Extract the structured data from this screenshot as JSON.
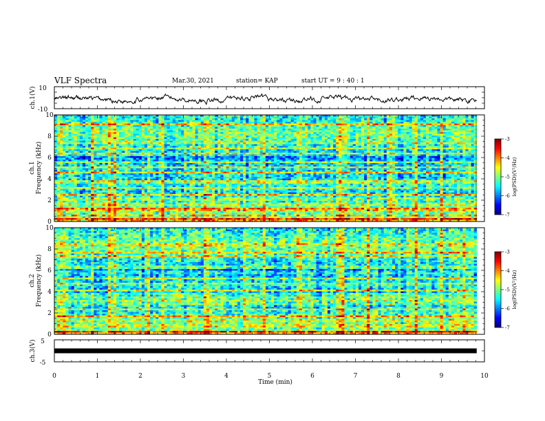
{
  "header": {
    "title": "VLF Spectra",
    "date": "Mar.30, 2021",
    "station": "station= KAP",
    "start": "start  UT =   9 : 40 : 1"
  },
  "chart_data": [
    {
      "type": "line",
      "ylabel": "ch.1(V)",
      "ylim": [
        -10,
        10
      ],
      "yticks": [
        "10",
        "-10"
      ],
      "xlim": [
        0,
        10
      ],
      "data_end": 9.82,
      "series_color": "#000000"
    },
    {
      "type": "heatmap",
      "ylabel_line1": "ch.1",
      "ylabel_line2": "Frequency  (kHz)",
      "ylim": [
        0,
        10
      ],
      "yticks": [
        "0",
        "2",
        "4",
        "6",
        "8",
        "10"
      ],
      "colorbar": {
        "label": "log(PSD)(V²/Hz)",
        "range": [
          -7,
          -3
        ],
        "ticks": [
          "-3",
          "-4",
          "-5",
          "-6",
          "-7"
        ]
      },
      "lines_khz": [
        0.3,
        0.6,
        1.0,
        1.2,
        1.6,
        2.1,
        2.5,
        3.1,
        3.7,
        3.85,
        4.6,
        5.1,
        5.6,
        6.4,
        6.9,
        7.4,
        9.1
      ],
      "bursts_min": [
        0.2,
        0.9,
        1.3,
        1.4,
        2.2,
        2.5,
        3.2,
        3.5,
        3.6,
        4.4,
        4.9,
        5.7,
        6.6,
        6.65,
        6.7,
        7.3,
        7.8,
        8.4,
        9.0,
        9.5
      ]
    },
    {
      "type": "heatmap",
      "ylabel_line1": "ch.2",
      "ylabel_line2": "Frequency  (kHz)",
      "ylim": [
        0,
        10
      ],
      "yticks": [
        "0",
        "2",
        "4",
        "6",
        "8",
        "10"
      ],
      "colorbar": {
        "label": "log(PSD)(V²/Hz)",
        "range": [
          -7,
          -3
        ],
        "ticks": [
          "-3",
          "-4",
          "-5",
          "-6",
          "-7"
        ]
      },
      "lines_khz": [
        0.3,
        0.8,
        1.3,
        1.7,
        2.3,
        2.9,
        3.2,
        3.4,
        4.1,
        4.7,
        5.2,
        5.8,
        6.3,
        7.3,
        7.7,
        8.4
      ],
      "bursts_min": [
        0.2,
        0.9,
        1.3,
        1.4,
        2.2,
        2.5,
        3.2,
        3.5,
        3.6,
        4.4,
        4.9,
        5.7,
        6.6,
        6.65,
        6.7,
        7.3,
        7.8,
        8.4,
        9.0,
        9.5
      ]
    },
    {
      "type": "line",
      "ylabel": "ch.3(V)",
      "ylim": [
        -5,
        5
      ],
      "yticks": [
        "5",
        "-5"
      ],
      "baseline": 0,
      "xlim": [
        0,
        10
      ],
      "data_end": 9.82,
      "xlabel": "Time  (min)",
      "xticks": [
        "0",
        "1",
        "2",
        "3",
        "4",
        "5",
        "6",
        "7",
        "8",
        "9",
        "10"
      ]
    }
  ],
  "colors": {
    "jet_low": "#00007f",
    "jet_mid": "#7fff7f",
    "jet_high": "#7f0000"
  }
}
